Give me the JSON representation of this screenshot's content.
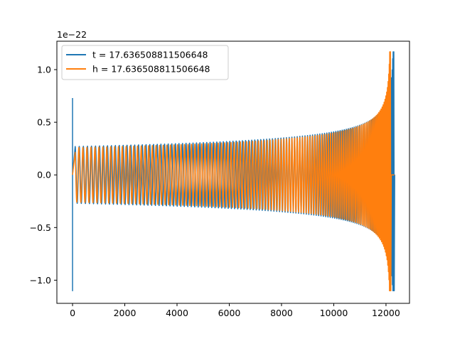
{
  "chart_data": {
    "type": "line",
    "title": "",
    "xlabel": "",
    "ylabel": "",
    "offset_text": "1e−22",
    "xlim": [
      -600,
      12900
    ],
    "ylim": [
      -1.22,
      1.27
    ],
    "x_ticks": [
      0,
      2000,
      4000,
      6000,
      8000,
      10000,
      12000
    ],
    "x_tick_labels": [
      "0",
      "2000",
      "4000",
      "6000",
      "8000",
      "10000",
      "12000"
    ],
    "y_ticks": [
      1.0,
      0.5,
      0.0,
      -0.5,
      -1.0
    ],
    "y_tick_labels": [
      "1.0",
      "0.5",
      "0.0",
      "−0.5",
      "−1.0"
    ],
    "grid": false,
    "legend_position": "top-left",
    "series": [
      {
        "name": "t = 17.636508811506648",
        "color": "#1f77b4",
        "x_start": 0,
        "x_end": 12320,
        "merger_x": 12300,
        "initial_spike": {
          "x": 0,
          "max": 0.73,
          "min": -1.1
        },
        "peak_max": 1.17,
        "peak_min": -1.1,
        "early_amplitude": 0.27
      },
      {
        "name": "h = 17.636508811506648",
        "color": "#ff7f0e",
        "x_start": 0,
        "x_end": 12320,
        "merger_x": 12170,
        "peak_max": 1.17,
        "peak_min": -1.1,
        "early_amplitude": 0.26,
        "tail_value": 0.0
      }
    ]
  }
}
